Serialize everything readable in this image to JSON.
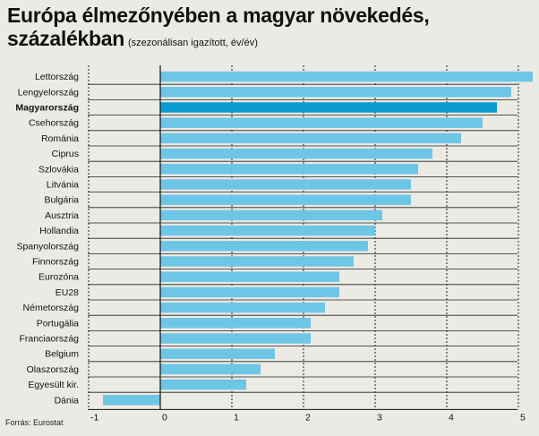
{
  "title": "Európa élmezőnyében a magyar növekedés,",
  "title_line2": "százalékban",
  "subtitle": "(szezonálisan igazított, év/év)",
  "source": "Forrás: Eurostat",
  "colors": {
    "bar": "#6ec6e6",
    "highlight": "#0a9bd0",
    "background": "#eceae4",
    "text": "#111111"
  },
  "chart_data": {
    "type": "bar",
    "orientation": "horizontal",
    "categories": [
      "Lettország",
      "Lengyelország",
      "Magyarország",
      "Csehország",
      "Románia",
      "Ciprus",
      "Szlovákia",
      "Litvánia",
      "Bulgária",
      "Ausztria",
      "Hollandia",
      "Spanyolország",
      "Finnország",
      "Eurozóna",
      "EU28",
      "Németország",
      "Portugália",
      "Franciaország",
      "Belgium",
      "Olaszország",
      "Egyesült kir.",
      "Dánia"
    ],
    "values": [
      5.2,
      4.9,
      4.7,
      4.5,
      4.2,
      3.8,
      3.6,
      3.5,
      3.5,
      3.1,
      3.0,
      2.9,
      2.7,
      2.5,
      2.5,
      2.3,
      2.1,
      2.1,
      1.6,
      1.4,
      1.2,
      -0.8
    ],
    "highlight": "Magyarország",
    "xlim": [
      -1,
      5
    ],
    "xticks": [
      -1,
      0,
      1,
      2,
      3,
      4,
      5
    ],
    "grid": true,
    "xlabel": "",
    "ylabel": ""
  }
}
